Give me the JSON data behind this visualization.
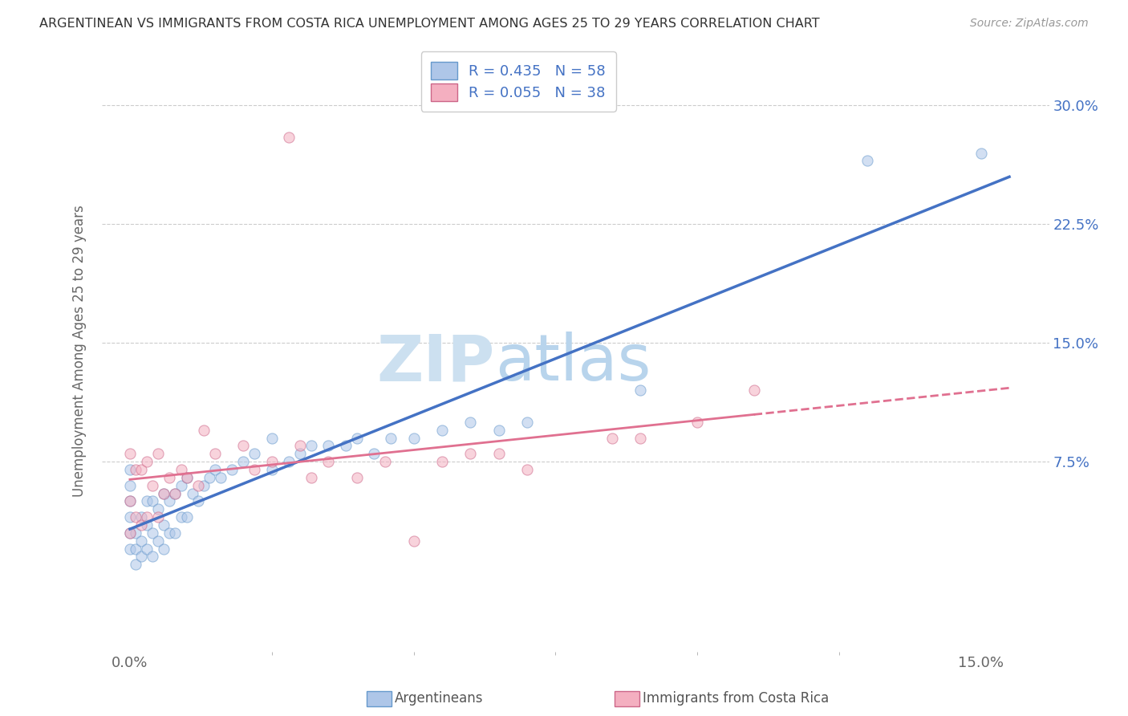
{
  "title": "ARGENTINEAN VS IMMIGRANTS FROM COSTA RICA UNEMPLOYMENT AMONG AGES 25 TO 29 YEARS CORRELATION CHART",
  "source": "Source: ZipAtlas.com",
  "xlim": [
    -0.005,
    0.162
  ],
  "ylim": [
    -0.045,
    0.335
  ],
  "ylabel": "Unemployment Among Ages 25 to 29 years",
  "legend_labels": [
    "Argentineans",
    "Immigrants from Costa Rica"
  ],
  "legend_r": [
    0.435,
    0.055
  ],
  "legend_n": [
    58,
    38
  ],
  "blue_color": "#aec6e8",
  "blue_line_color": "#4472c4",
  "pink_color": "#f4afc0",
  "pink_line_color": "#e07090",
  "blue_edge_color": "#6699cc",
  "pink_edge_color": "#cc6688",
  "watermark_color": "#cce0f0",
  "y_tick_vals": [
    0.075,
    0.15,
    0.225,
    0.3
  ],
  "y_tick_labels": [
    "7.5%",
    "15.0%",
    "22.5%",
    "30.0%"
  ],
  "x_tick_vals": [
    0.0,
    0.15
  ],
  "x_tick_labels": [
    "0.0%",
    "15.0%"
  ],
  "blue_scatter_x": [
    0.0,
    0.0,
    0.0,
    0.0,
    0.0,
    0.0,
    0.001,
    0.001,
    0.001,
    0.002,
    0.002,
    0.002,
    0.003,
    0.003,
    0.003,
    0.004,
    0.004,
    0.004,
    0.005,
    0.005,
    0.006,
    0.006,
    0.006,
    0.007,
    0.007,
    0.008,
    0.008,
    0.009,
    0.009,
    0.01,
    0.01,
    0.011,
    0.012,
    0.013,
    0.014,
    0.015,
    0.016,
    0.018,
    0.02,
    0.022,
    0.025,
    0.025,
    0.028,
    0.03,
    0.032,
    0.035,
    0.038,
    0.04,
    0.043,
    0.046,
    0.05,
    0.055,
    0.06,
    0.065,
    0.07,
    0.09,
    0.13,
    0.15
  ],
  "blue_scatter_y": [
    0.02,
    0.03,
    0.04,
    0.05,
    0.06,
    0.07,
    0.01,
    0.02,
    0.03,
    0.015,
    0.025,
    0.04,
    0.02,
    0.035,
    0.05,
    0.015,
    0.03,
    0.05,
    0.025,
    0.045,
    0.02,
    0.035,
    0.055,
    0.03,
    0.05,
    0.03,
    0.055,
    0.04,
    0.06,
    0.04,
    0.065,
    0.055,
    0.05,
    0.06,
    0.065,
    0.07,
    0.065,
    0.07,
    0.075,
    0.08,
    0.07,
    0.09,
    0.075,
    0.08,
    0.085,
    0.085,
    0.085,
    0.09,
    0.08,
    0.09,
    0.09,
    0.095,
    0.1,
    0.095,
    0.1,
    0.12,
    0.265,
    0.27
  ],
  "pink_scatter_x": [
    0.0,
    0.0,
    0.0,
    0.001,
    0.001,
    0.002,
    0.002,
    0.003,
    0.003,
    0.004,
    0.005,
    0.005,
    0.006,
    0.007,
    0.008,
    0.009,
    0.01,
    0.012,
    0.013,
    0.015,
    0.02,
    0.022,
    0.025,
    0.028,
    0.03,
    0.032,
    0.035,
    0.04,
    0.045,
    0.05,
    0.055,
    0.06,
    0.065,
    0.07,
    0.085,
    0.09,
    0.1,
    0.11
  ],
  "pink_scatter_y": [
    0.03,
    0.05,
    0.08,
    0.04,
    0.07,
    0.035,
    0.07,
    0.04,
    0.075,
    0.06,
    0.04,
    0.08,
    0.055,
    0.065,
    0.055,
    0.07,
    0.065,
    0.06,
    0.095,
    0.08,
    0.085,
    0.07,
    0.075,
    0.28,
    0.085,
    0.065,
    0.075,
    0.065,
    0.075,
    0.025,
    0.075,
    0.08,
    0.08,
    0.07,
    0.09,
    0.09,
    0.1,
    0.12
  ],
  "marker_size": 90,
  "marker_alpha": 0.55
}
